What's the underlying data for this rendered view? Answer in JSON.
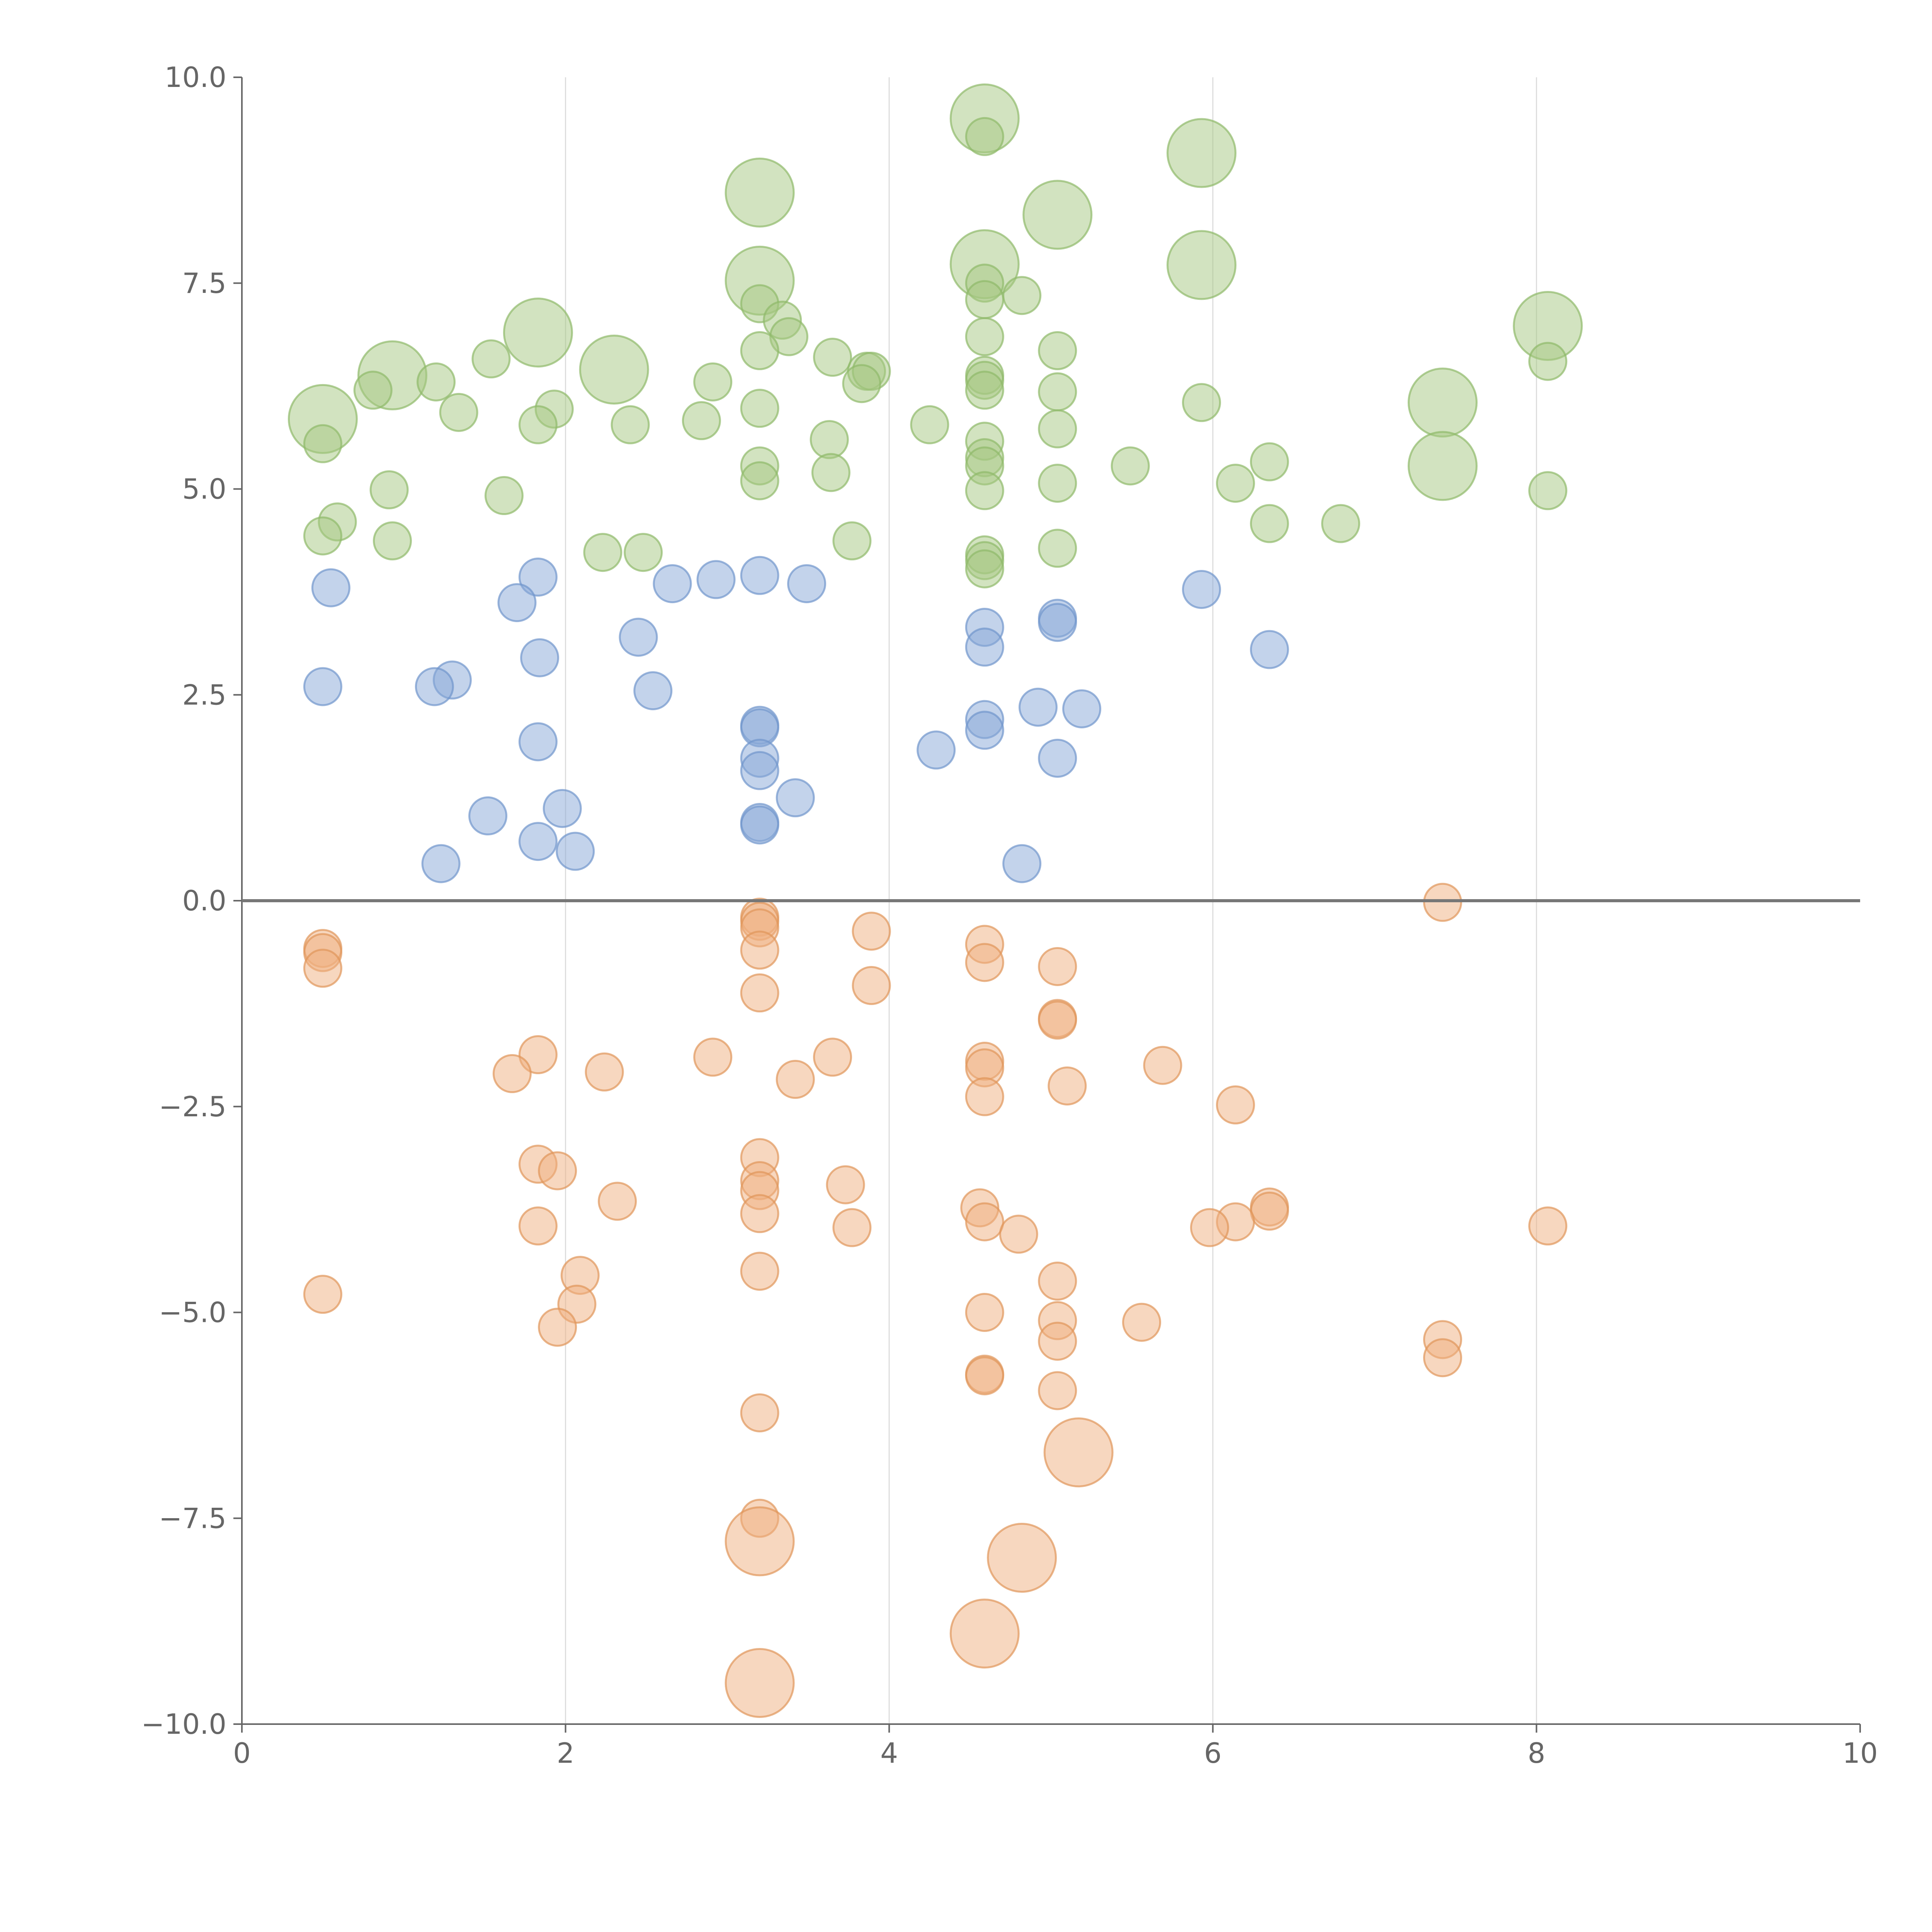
{
  "chart_data": {
    "type": "scatter",
    "title": "",
    "xlabel": "",
    "ylabel": "",
    "xlim": [
      0,
      10
    ],
    "ylim": [
      -10,
      10
    ],
    "x_ticks": [
      0,
      2,
      4,
      6,
      8,
      10
    ],
    "y_ticks": [
      -10,
      -7.5,
      -5,
      -2.5,
      0,
      2.5,
      5,
      7.5,
      10
    ],
    "x_tick_labels": [
      "0",
      "2",
      "4",
      "6",
      "8",
      "10"
    ],
    "y_tick_labels": [
      "−10.0",
      "−7.5",
      "−5.0",
      "−2.5",
      "0.0",
      "2.5",
      "5.0",
      "7.5",
      "10.0"
    ],
    "vertical_grid": true,
    "horizontal_grid": false,
    "zero_line": true,
    "legend": "none",
    "series": [
      {
        "color": "#a5c882",
        "stroke": "#8fb96a",
        "points": [
          [
            4.59,
            9.5,
            3
          ],
          [
            4.59,
            9.28,
            1
          ],
          [
            5.93,
            9.08,
            3
          ],
          [
            3.2,
            8.6,
            3
          ],
          [
            5.04,
            8.33,
            3
          ],
          [
            4.59,
            7.73,
            3
          ],
          [
            5.93,
            7.72,
            3
          ],
          [
            3.2,
            7.53,
            3
          ],
          [
            4.59,
            7.5,
            1
          ],
          [
            4.59,
            7.3,
            1
          ],
          [
            4.82,
            7.35,
            1
          ],
          [
            3.2,
            7.25,
            1
          ],
          [
            3.34,
            7.05,
            1
          ],
          [
            3.38,
            6.85,
            1
          ],
          [
            1.83,
            6.9,
            3
          ],
          [
            8.07,
            6.98,
            3
          ],
          [
            4.59,
            6.85,
            1
          ],
          [
            5.04,
            6.68,
            1
          ],
          [
            3.2,
            6.68,
            1
          ],
          [
            3.65,
            6.6,
            1
          ],
          [
            1.54,
            6.58,
            1
          ],
          [
            0.93,
            6.38,
            3
          ],
          [
            2.3,
            6.45,
            3
          ],
          [
            3.86,
            6.43,
            1
          ],
          [
            3.89,
            6.43,
            1
          ],
          [
            4.59,
            6.38,
            1
          ],
          [
            4.59,
            6.32,
            1
          ],
          [
            8.07,
            6.55,
            1
          ],
          [
            1.2,
            6.3,
            1
          ],
          [
            2.91,
            6.3,
            1
          ],
          [
            3.83,
            6.28,
            1
          ],
          [
            0.81,
            6.2,
            1
          ],
          [
            4.59,
            6.2,
            1
          ],
          [
            5.04,
            6.18,
            1
          ],
          [
            7.42,
            6.05,
            3
          ],
          [
            5.93,
            6.05,
            1
          ],
          [
            3.2,
            5.98,
            1
          ],
          [
            1.93,
            5.97,
            1
          ],
          [
            1.34,
            5.93,
            1
          ],
          [
            0.5,
            5.85,
            3
          ],
          [
            2.84,
            5.83,
            1
          ],
          [
            2.4,
            5.78,
            1
          ],
          [
            1.83,
            5.78,
            1
          ],
          [
            4.25,
            5.78,
            1
          ],
          [
            5.04,
            5.73,
            1
          ],
          [
            3.63,
            5.6,
            1
          ],
          [
            4.59,
            5.58,
            1
          ],
          [
            0.5,
            5.55,
            1
          ],
          [
            4.59,
            5.38,
            1
          ],
          [
            4.59,
            5.28,
            1
          ],
          [
            3.2,
            5.28,
            1
          ],
          [
            5.49,
            5.28,
            1
          ],
          [
            7.42,
            5.28,
            3
          ],
          [
            6.35,
            5.33,
            1
          ],
          [
            3.64,
            5.2,
            1
          ],
          [
            3.2,
            5.1,
            1
          ],
          [
            6.14,
            5.07,
            1
          ],
          [
            5.04,
            5.07,
            1
          ],
          [
            4.59,
            4.98,
            1
          ],
          [
            8.07,
            4.98,
            1
          ],
          [
            0.91,
            4.99,
            1
          ],
          [
            1.62,
            4.92,
            1
          ],
          [
            0.59,
            4.6,
            1
          ],
          [
            6.35,
            4.58,
            1
          ],
          [
            6.79,
            4.58,
            1
          ],
          [
            0.5,
            4.43,
            1
          ],
          [
            0.93,
            4.37,
            1
          ],
          [
            3.77,
            4.37,
            1
          ],
          [
            2.48,
            4.23,
            1
          ],
          [
            2.23,
            4.23,
            1
          ],
          [
            5.04,
            4.28,
            1
          ],
          [
            4.59,
            4.2,
            1
          ],
          [
            4.59,
            4.13,
            1
          ],
          [
            4.59,
            4.03,
            1
          ]
        ]
      },
      {
        "color": "#88a8d8",
        "stroke": "#7095cc",
        "points": [
          [
            1.83,
            3.93,
            1
          ],
          [
            3.2,
            3.95,
            1
          ],
          [
            2.93,
            3.9,
            1
          ],
          [
            2.66,
            3.85,
            1
          ],
          [
            3.49,
            3.85,
            1
          ],
          [
            0.55,
            3.8,
            1
          ],
          [
            5.93,
            3.78,
            1
          ],
          [
            1.7,
            3.62,
            1
          ],
          [
            5.04,
            3.43,
            1
          ],
          [
            5.04,
            3.38,
            1
          ],
          [
            4.59,
            3.32,
            1
          ],
          [
            2.45,
            3.2,
            1
          ],
          [
            4.59,
            3.08,
            1
          ],
          [
            6.35,
            3.05,
            1
          ],
          [
            1.84,
            2.95,
            1
          ],
          [
            1.3,
            2.68,
            1
          ],
          [
            0.5,
            2.6,
            1
          ],
          [
            1.19,
            2.6,
            1
          ],
          [
            2.54,
            2.55,
            1
          ],
          [
            4.92,
            2.35,
            1
          ],
          [
            5.19,
            2.33,
            1
          ],
          [
            4.59,
            2.2,
            1
          ],
          [
            3.2,
            2.13,
            1
          ],
          [
            3.2,
            2.1,
            1
          ],
          [
            4.59,
            2.07,
            1
          ],
          [
            1.83,
            1.93,
            1
          ],
          [
            4.29,
            1.83,
            1
          ],
          [
            3.2,
            1.73,
            1
          ],
          [
            5.04,
            1.73,
            1
          ],
          [
            3.2,
            1.58,
            1
          ],
          [
            3.42,
            1.25,
            1
          ],
          [
            1.98,
            1.12,
            1
          ],
          [
            1.52,
            1.03,
            1
          ],
          [
            3.2,
            0.95,
            1
          ],
          [
            3.2,
            0.92,
            1
          ],
          [
            1.83,
            0.72,
            1
          ],
          [
            2.06,
            0.6,
            1
          ],
          [
            1.23,
            0.45,
            1
          ],
          [
            4.82,
            0.45,
            1
          ]
        ]
      },
      {
        "color": "#f0b080",
        "stroke": "#e0955a",
        "points": [
          [
            7.42,
            -0.02,
            1
          ],
          [
            3.2,
            -0.2,
            1
          ],
          [
            3.2,
            -0.25,
            1
          ],
          [
            3.2,
            -0.33,
            1
          ],
          [
            3.89,
            -0.37,
            1
          ],
          [
            0.5,
            -0.58,
            1
          ],
          [
            0.5,
            -0.63,
            1
          ],
          [
            4.59,
            -0.53,
            1
          ],
          [
            3.2,
            -0.6,
            1
          ],
          [
            4.59,
            -0.75,
            1
          ],
          [
            0.5,
            -0.82,
            1
          ],
          [
            5.04,
            -0.8,
            1
          ],
          [
            3.89,
            -1.03,
            1
          ],
          [
            3.2,
            -1.12,
            1
          ],
          [
            5.04,
            -1.43,
            1
          ],
          [
            5.04,
            -1.45,
            1
          ],
          [
            1.83,
            -1.87,
            1
          ],
          [
            2.91,
            -1.9,
            1
          ],
          [
            3.65,
            -1.9,
            1
          ],
          [
            4.59,
            -1.95,
            1
          ],
          [
            5.69,
            -2.0,
            1
          ],
          [
            4.59,
            -2.03,
            1
          ],
          [
            1.67,
            -2.1,
            1
          ],
          [
            2.24,
            -2.08,
            1
          ],
          [
            3.42,
            -2.17,
            1
          ],
          [
            5.1,
            -2.25,
            1
          ],
          [
            4.59,
            -2.38,
            1
          ],
          [
            6.14,
            -2.48,
            1
          ],
          [
            3.2,
            -3.12,
            1
          ],
          [
            1.83,
            -3.2,
            1
          ],
          [
            1.95,
            -3.28,
            1
          ],
          [
            3.2,
            -3.4,
            1
          ],
          [
            3.73,
            -3.45,
            1
          ],
          [
            3.2,
            -3.52,
            1
          ],
          [
            2.32,
            -3.65,
            1
          ],
          [
            4.56,
            -3.73,
            1
          ],
          [
            6.35,
            -3.72,
            1
          ],
          [
            6.35,
            -3.77,
            1
          ],
          [
            3.2,
            -3.8,
            1
          ],
          [
            4.59,
            -3.9,
            1
          ],
          [
            6.14,
            -3.9,
            1
          ],
          [
            1.83,
            -3.95,
            1
          ],
          [
            3.77,
            -3.97,
            1
          ],
          [
            5.98,
            -3.97,
            1
          ],
          [
            8.07,
            -3.95,
            1
          ],
          [
            4.8,
            -4.05,
            1
          ],
          [
            3.2,
            -4.5,
            1
          ],
          [
            2.09,
            -4.55,
            1
          ],
          [
            5.04,
            -4.62,
            1
          ],
          [
            0.5,
            -4.78,
            1
          ],
          [
            2.07,
            -4.9,
            1
          ],
          [
            4.59,
            -5.0,
            1
          ],
          [
            5.04,
            -5.1,
            1
          ],
          [
            5.56,
            -5.12,
            1
          ],
          [
            1.95,
            -5.18,
            1
          ],
          [
            7.42,
            -5.33,
            1
          ],
          [
            5.04,
            -5.35,
            1
          ],
          [
            7.42,
            -5.55,
            1
          ],
          [
            4.59,
            -5.75,
            1
          ],
          [
            4.59,
            -5.77,
            1
          ],
          [
            5.04,
            -5.95,
            1
          ],
          [
            3.2,
            -6.22,
            1
          ],
          [
            5.17,
            -6.7,
            3
          ],
          [
            3.2,
            -7.5,
            1
          ],
          [
            3.2,
            -7.78,
            3
          ],
          [
            4.82,
            -7.98,
            3
          ],
          [
            4.59,
            -8.9,
            3
          ],
          [
            3.2,
            -9.5,
            3
          ]
        ]
      }
    ]
  }
}
